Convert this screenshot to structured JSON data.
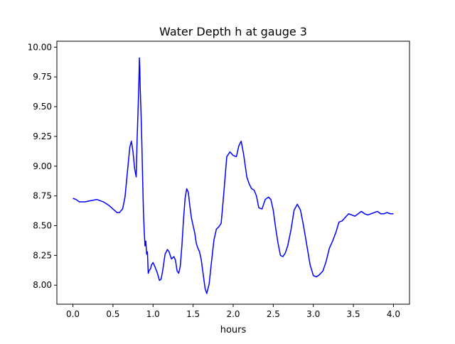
{
  "chart_data": {
    "type": "line",
    "title": "Water Depth h at gauge 3",
    "xlabel": "hours",
    "ylabel": "",
    "xlim": [
      -0.2,
      4.2
    ],
    "ylim": [
      7.84,
      10.05
    ],
    "xticks": [
      {
        "value": 0.0,
        "label": "0.0"
      },
      {
        "value": 0.5,
        "label": "0.5"
      },
      {
        "value": 1.0,
        "label": "1.0"
      },
      {
        "value": 1.5,
        "label": "1.5"
      },
      {
        "value": 2.0,
        "label": "2.0"
      },
      {
        "value": 2.5,
        "label": "2.5"
      },
      {
        "value": 3.0,
        "label": "3.0"
      },
      {
        "value": 3.5,
        "label": "3.5"
      },
      {
        "value": 4.0,
        "label": "4.0"
      }
    ],
    "yticks": [
      {
        "value": 8.0,
        "label": "8.00"
      },
      {
        "value": 8.25,
        "label": "8.25"
      },
      {
        "value": 8.5,
        "label": "8.50"
      },
      {
        "value": 8.75,
        "label": "8.75"
      },
      {
        "value": 9.0,
        "label": "9.00"
      },
      {
        "value": 9.25,
        "label": "9.25"
      },
      {
        "value": 9.5,
        "label": "9.50"
      },
      {
        "value": 9.75,
        "label": "9.75"
      },
      {
        "value": 10.0,
        "label": "10.00"
      }
    ],
    "grid": false,
    "legend": "none",
    "series": [
      {
        "color": "#0000ff",
        "x": [
          0.0,
          0.04,
          0.08,
          0.15,
          0.22,
          0.3,
          0.38,
          0.45,
          0.5,
          0.55,
          0.58,
          0.62,
          0.65,
          0.68,
          0.71,
          0.73,
          0.75,
          0.77,
          0.79,
          0.8,
          0.82,
          0.83,
          0.835,
          0.84,
          0.85,
          0.86,
          0.87,
          0.88,
          0.89,
          0.9,
          0.91,
          0.92,
          0.93,
          0.94,
          0.95,
          0.96,
          0.97,
          0.98,
          0.99,
          1.0,
          1.02,
          1.05,
          1.08,
          1.1,
          1.12,
          1.15,
          1.18,
          1.2,
          1.23,
          1.26,
          1.28,
          1.3,
          1.32,
          1.34,
          1.36,
          1.38,
          1.4,
          1.42,
          1.44,
          1.46,
          1.48,
          1.5,
          1.52,
          1.54,
          1.56,
          1.58,
          1.6,
          1.63,
          1.65,
          1.67,
          1.7,
          1.73,
          1.76,
          1.79,
          1.82,
          1.85,
          1.88,
          1.92,
          1.96,
          2.0,
          2.04,
          2.07,
          2.1,
          2.13,
          2.17,
          2.2,
          2.23,
          2.26,
          2.29,
          2.32,
          2.36,
          2.4,
          2.44,
          2.47,
          2.5,
          2.53,
          2.56,
          2.59,
          2.62,
          2.65,
          2.68,
          2.72,
          2.76,
          2.8,
          2.84,
          2.88,
          2.92,
          2.96,
          3.0,
          3.04,
          3.08,
          3.12,
          3.16,
          3.2,
          3.24,
          3.28,
          3.32,
          3.36,
          3.4,
          3.44,
          3.48,
          3.52,
          3.56,
          3.6,
          3.64,
          3.68,
          3.72,
          3.76,
          3.8,
          3.84,
          3.88,
          3.92,
          3.96,
          4.0
        ],
        "y": [
          8.73,
          8.72,
          8.7,
          8.7,
          8.71,
          8.72,
          8.7,
          8.67,
          8.64,
          8.61,
          8.61,
          8.64,
          8.74,
          8.95,
          9.16,
          9.21,
          9.12,
          8.98,
          8.91,
          9.2,
          9.62,
          9.91,
          9.82,
          9.65,
          9.45,
          9.2,
          8.9,
          8.62,
          8.45,
          8.33,
          8.37,
          8.26,
          8.28,
          8.1,
          8.12,
          8.13,
          8.14,
          8.17,
          8.18,
          8.19,
          8.16,
          8.11,
          8.04,
          8.05,
          8.12,
          8.26,
          8.3,
          8.28,
          8.22,
          8.24,
          8.21,
          8.12,
          8.1,
          8.16,
          8.33,
          8.55,
          8.73,
          8.81,
          8.78,
          8.66,
          8.56,
          8.5,
          8.44,
          8.35,
          8.31,
          8.28,
          8.22,
          8.07,
          7.97,
          7.93,
          8.01,
          8.2,
          8.38,
          8.47,
          8.49,
          8.52,
          8.75,
          9.08,
          9.12,
          9.09,
          9.08,
          9.17,
          9.21,
          9.1,
          8.91,
          8.85,
          8.81,
          8.8,
          8.75,
          8.65,
          8.64,
          8.72,
          8.74,
          8.72,
          8.63,
          8.48,
          8.35,
          8.25,
          8.24,
          8.27,
          8.33,
          8.46,
          8.63,
          8.68,
          8.63,
          8.49,
          8.33,
          8.17,
          8.08,
          8.07,
          8.09,
          8.12,
          8.2,
          8.31,
          8.37,
          8.44,
          8.53,
          8.54,
          8.57,
          8.6,
          8.59,
          8.58,
          8.6,
          8.62,
          8.6,
          8.59,
          8.6,
          8.61,
          8.62,
          8.6,
          8.6,
          8.61,
          8.6,
          8.6
        ]
      }
    ]
  }
}
